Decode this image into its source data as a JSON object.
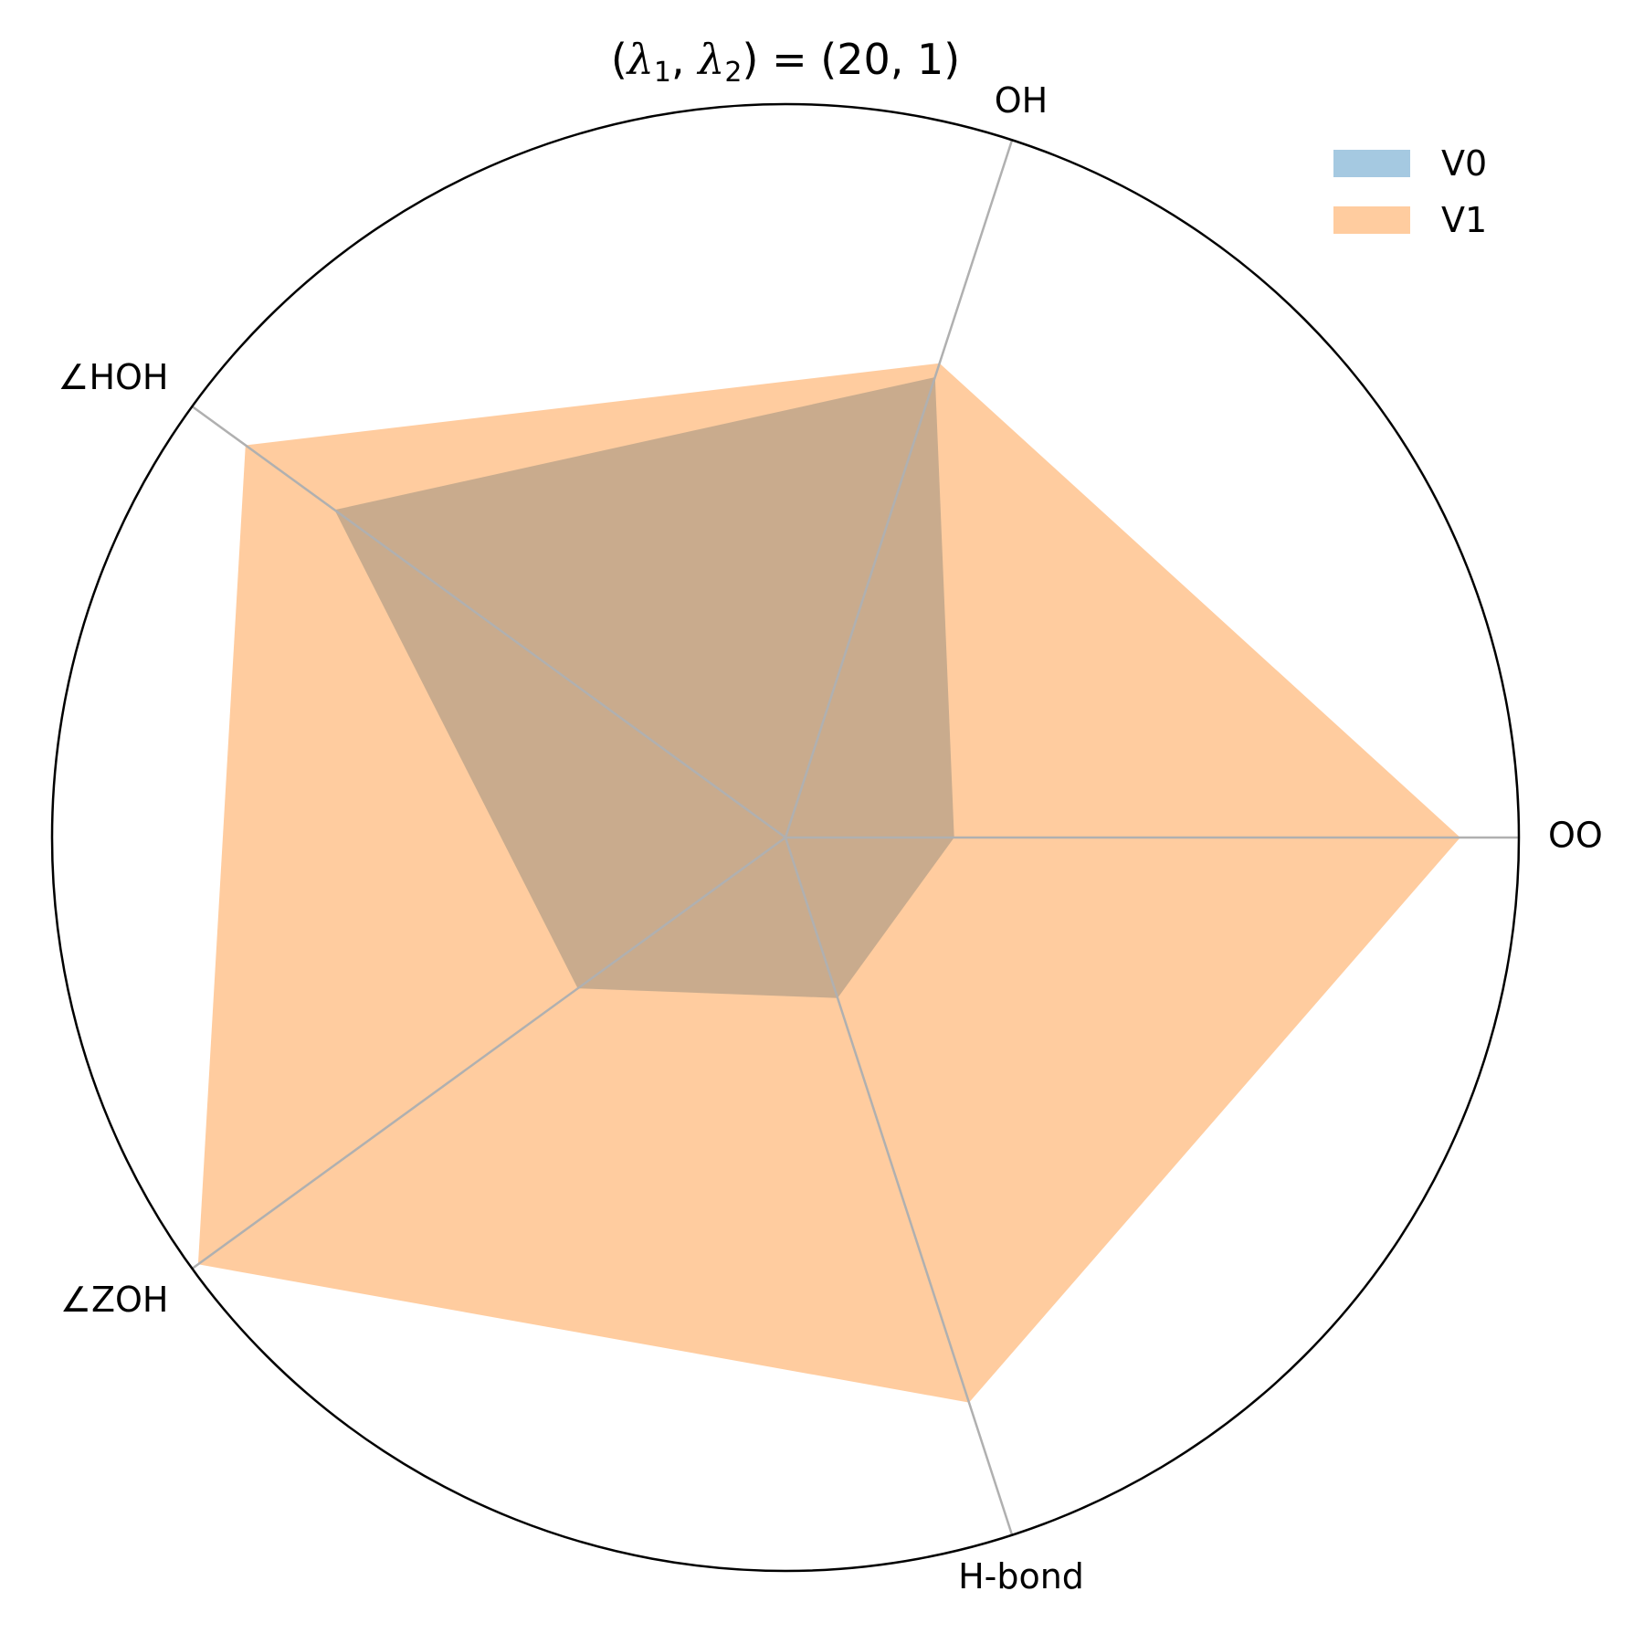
{
  "chart_data": {
    "type": "radar",
    "title": "",
    "axes": [
      "OO",
      "OH",
      "∠HOH",
      "∠ZOH",
      "H-bond"
    ],
    "rmax": 1.0,
    "series": [
      {
        "name": "V0",
        "values": [
          0.23,
          0.66,
          0.76,
          0.35,
          0.23
        ],
        "color": "#1f77b4",
        "alpha": 0.4
      },
      {
        "name": "V1",
        "values": [
          0.92,
          0.68,
          0.91,
          0.99,
          0.81
        ],
        "color": "#ff7f0e",
        "alpha": 0.4
      }
    ],
    "legend_position": "top-right"
  },
  "title": {
    "prefix": "(",
    "lambda1": "λ",
    "sub1": "1",
    "comma": ", ",
    "lambda2": "λ",
    "sub2": "2",
    "suffix": ") = (20, 1)"
  }
}
